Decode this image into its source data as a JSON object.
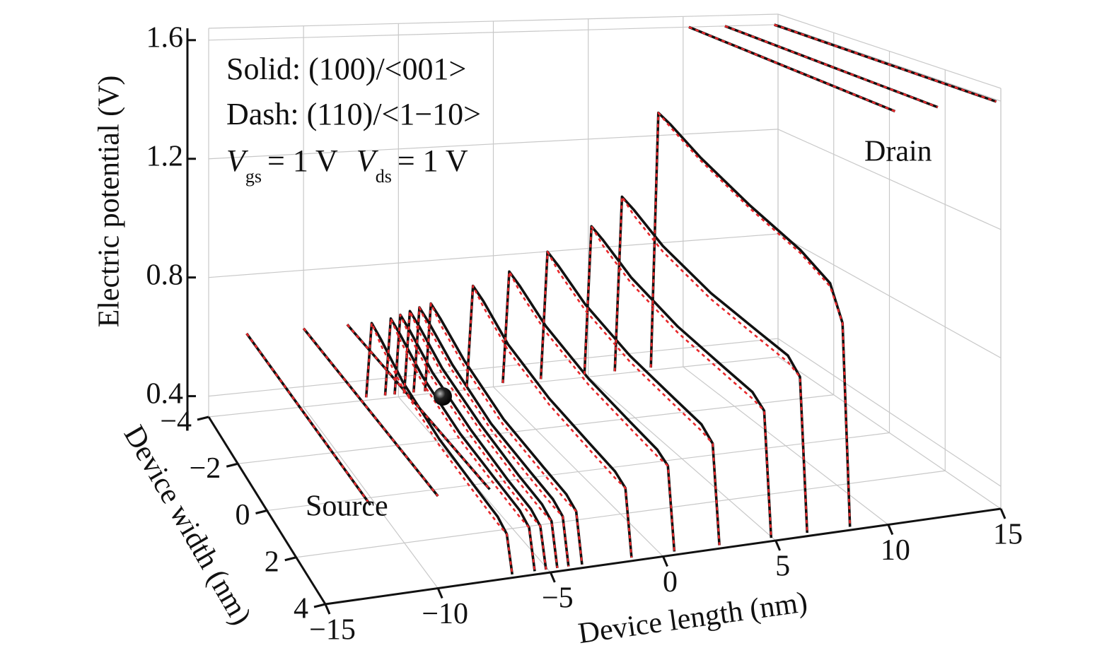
{
  "chart_data": {
    "type": "waterfall3d",
    "xlabel": "Device length (nm)",
    "ylabel": "Device width (nm)",
    "zlabel": "Electric potential (V)",
    "xlim": [
      -15,
      15
    ],
    "ylim": [
      -4,
      4
    ],
    "zlim": [
      0.33,
      1.64
    ],
    "xticks": [
      {
        "value": -15,
        "label": "−15"
      },
      {
        "value": -10,
        "label": "−10"
      },
      {
        "value": -5,
        "label": "−5"
      },
      0,
      5,
      10,
      15
    ],
    "yticks": [
      {
        "value": -4,
        "label": "−4"
      },
      {
        "value": -2,
        "label": "−2"
      },
      0,
      2,
      4
    ],
    "zticks": [
      0.4,
      0.8,
      1.2,
      1.6
    ],
    "grid": true,
    "width": [
      -4,
      -3.7,
      -3.2,
      -2,
      0,
      2,
      3.2,
      3.7,
      4
    ],
    "lengths": [
      -13,
      -10,
      -7.7,
      -6.7,
      -5.7,
      -5.2,
      -4.7,
      -4.2,
      -3.6,
      -1.4,
      0.5,
      2.5,
      4.8,
      6.4,
      8.3,
      10.3,
      12.2,
      14.8
    ],
    "series": [
      {
        "name": "Solid: (100)/<001>",
        "color": "#111111",
        "line_style": "solid",
        "values": [
          [
            0.6,
            0.6,
            0.6,
            0.6,
            0.6,
            0.6,
            0.6,
            0.6,
            0.6
          ],
          [
            0.6,
            0.6,
            0.6,
            0.6,
            0.6,
            0.6,
            0.6,
            0.6,
            0.6
          ],
          [
            0.6,
            0.6,
            0.6,
            0.6,
            0.6,
            0.6,
            0.6,
            0.6,
            0.6
          ],
          [
            0.34,
            0.62,
            0.6,
            0.54,
            0.49,
            0.47,
            0.46,
            0.44,
            0.34
          ],
          [
            0.34,
            0.63,
            0.61,
            0.55,
            0.5,
            0.48,
            0.47,
            0.45,
            0.34
          ],
          [
            0.34,
            0.64,
            0.62,
            0.56,
            0.51,
            0.48,
            0.47,
            0.45,
            0.34
          ],
          [
            0.34,
            0.65,
            0.63,
            0.57,
            0.52,
            0.49,
            0.48,
            0.46,
            0.34
          ],
          [
            0.34,
            0.66,
            0.64,
            0.58,
            0.52,
            0.5,
            0.49,
            0.47,
            0.34
          ],
          [
            0.34,
            0.67,
            0.65,
            0.59,
            0.53,
            0.51,
            0.5,
            0.48,
            0.34
          ],
          [
            0.34,
            0.72,
            0.7,
            0.63,
            0.58,
            0.56,
            0.55,
            0.53,
            0.34
          ],
          [
            0.34,
            0.76,
            0.74,
            0.68,
            0.63,
            0.61,
            0.6,
            0.58,
            0.34
          ],
          [
            0.34,
            0.82,
            0.8,
            0.74,
            0.69,
            0.67,
            0.66,
            0.63,
            0.34
          ],
          [
            0.34,
            0.9,
            0.88,
            0.82,
            0.77,
            0.75,
            0.74,
            0.71,
            0.34
          ],
          [
            0.34,
            1.0,
            0.98,
            0.92,
            0.87,
            0.85,
            0.84,
            0.8,
            0.34
          ],
          [
            0.34,
            1.3,
            1.28,
            1.22,
            1.15,
            1.1,
            1.05,
            0.95,
            0.34
          ],
          [
            1.6,
            1.6,
            1.6,
            1.6,
            1.6,
            1.6,
            1.6,
            1.6,
            1.6
          ],
          [
            1.6,
            1.6,
            1.6,
            1.6,
            1.6,
            1.6,
            1.6,
            1.6,
            1.6
          ],
          [
            1.6,
            1.6,
            1.6,
            1.6,
            1.6,
            1.6,
            1.6,
            1.6,
            1.6
          ]
        ]
      },
      {
        "name": "Dash: (110)/<1−10>",
        "color": "#e8282b",
        "line_style": "dashed",
        "values": [
          [
            0.6,
            0.6,
            0.6,
            0.6,
            0.6,
            0.6,
            0.6,
            0.6,
            0.6
          ],
          [
            0.6,
            0.6,
            0.6,
            0.6,
            0.6,
            0.6,
            0.6,
            0.6,
            0.6
          ],
          [
            0.6,
            0.6,
            0.6,
            0.6,
            0.6,
            0.6,
            0.6,
            0.6,
            0.6
          ],
          [
            0.34,
            0.62,
            0.58,
            0.52,
            0.47,
            0.45,
            0.44,
            0.44,
            0.34
          ],
          [
            0.34,
            0.63,
            0.59,
            0.53,
            0.48,
            0.46,
            0.45,
            0.45,
            0.34
          ],
          [
            0.34,
            0.64,
            0.6,
            0.54,
            0.49,
            0.46,
            0.45,
            0.45,
            0.34
          ],
          [
            0.34,
            0.65,
            0.61,
            0.55,
            0.5,
            0.47,
            0.46,
            0.46,
            0.34
          ],
          [
            0.34,
            0.66,
            0.62,
            0.56,
            0.5,
            0.48,
            0.47,
            0.47,
            0.34
          ],
          [
            0.34,
            0.67,
            0.63,
            0.57,
            0.51,
            0.49,
            0.48,
            0.48,
            0.34
          ],
          [
            0.34,
            0.72,
            0.68,
            0.61,
            0.56,
            0.54,
            0.53,
            0.53,
            0.34
          ],
          [
            0.34,
            0.76,
            0.72,
            0.66,
            0.61,
            0.59,
            0.58,
            0.58,
            0.34
          ],
          [
            0.34,
            0.82,
            0.78,
            0.72,
            0.67,
            0.65,
            0.64,
            0.63,
            0.34
          ],
          [
            0.34,
            0.9,
            0.86,
            0.8,
            0.75,
            0.73,
            0.72,
            0.71,
            0.34
          ],
          [
            0.34,
            1.0,
            0.96,
            0.9,
            0.85,
            0.83,
            0.82,
            0.8,
            0.34
          ],
          [
            0.34,
            1.3,
            1.27,
            1.21,
            1.14,
            1.09,
            1.04,
            0.95,
            0.34
          ],
          [
            1.6,
            1.6,
            1.6,
            1.6,
            1.6,
            1.6,
            1.6,
            1.6,
            1.6
          ],
          [
            1.6,
            1.6,
            1.6,
            1.6,
            1.6,
            1.6,
            1.6,
            1.6,
            1.6
          ],
          [
            1.6,
            1.6,
            1.6,
            1.6,
            1.6,
            1.6,
            1.6,
            1.6,
            1.6
          ]
        ]
      }
    ],
    "conditions": [
      {
        "symbol": "V",
        "subscript": "gs",
        "text": "= 1 V"
      },
      {
        "symbol": "V",
        "subscript": "ds",
        "text": "= 1 V"
      }
    ],
    "annotations": [
      "Source",
      "Drain"
    ]
  }
}
